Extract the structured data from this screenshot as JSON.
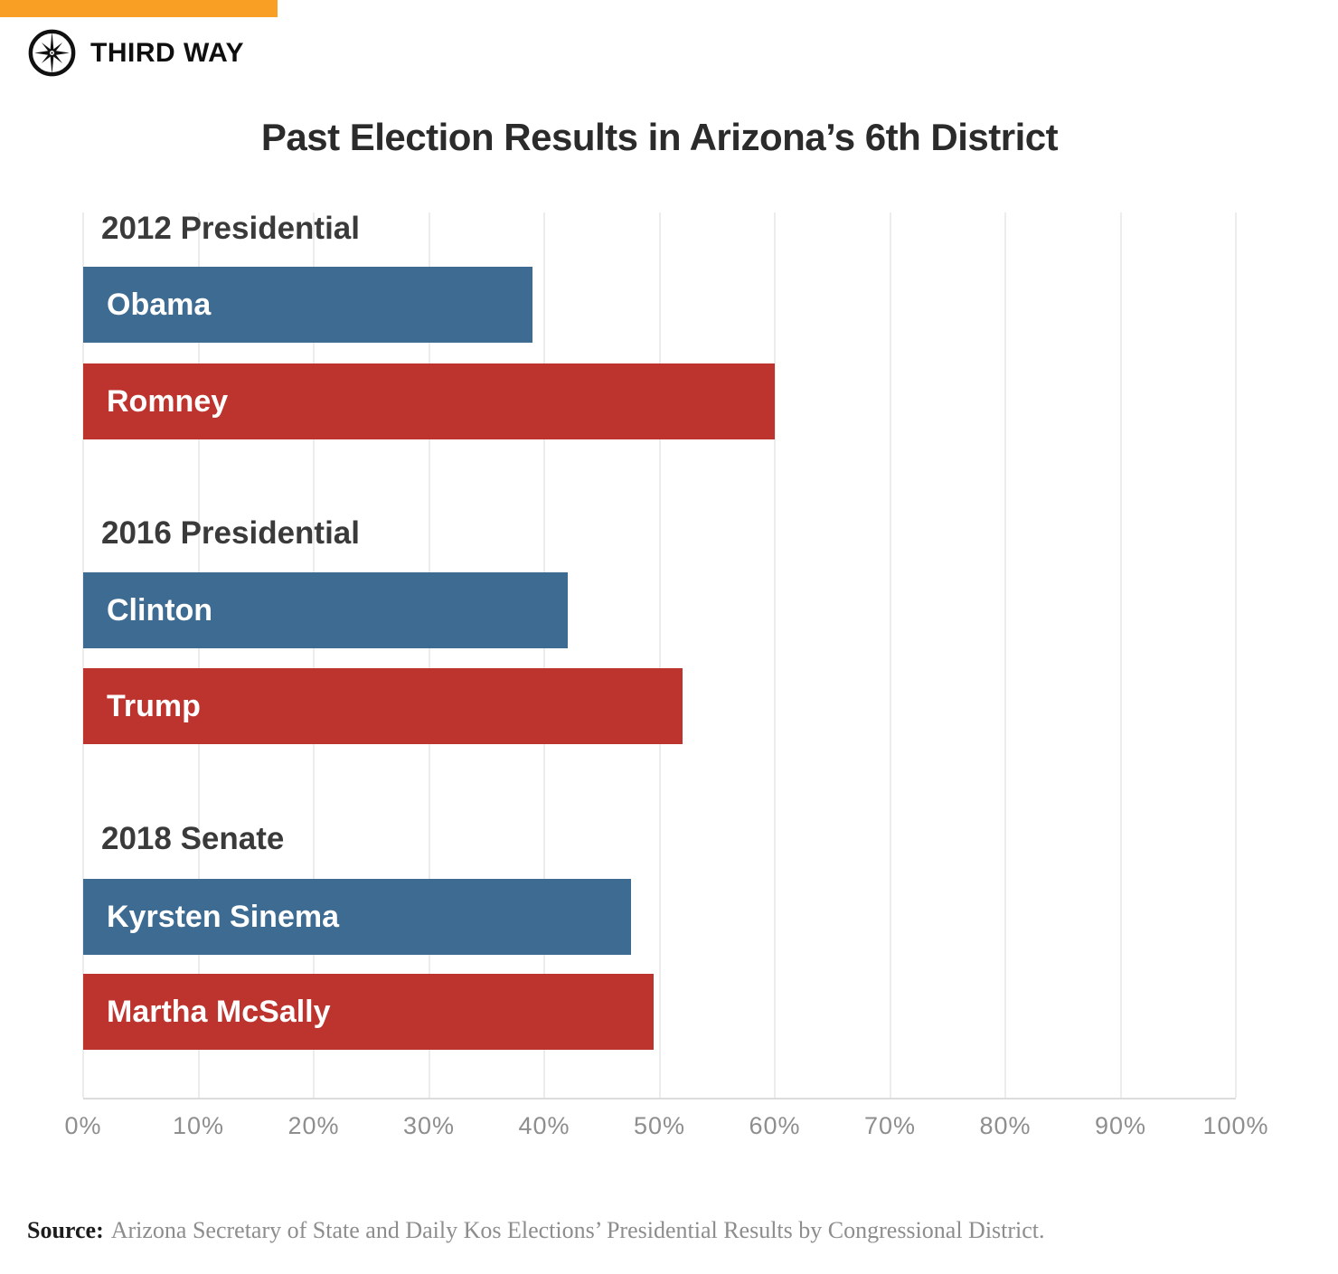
{
  "brand": {
    "name": "THIRD WAY",
    "icon": "compass-star-icon",
    "accent_color": "#F9A024"
  },
  "chart_data": {
    "type": "bar",
    "orientation": "horizontal",
    "title": "Past Election Results in Arizona’s 6th District",
    "xlim": [
      0,
      100
    ],
    "x_ticks": [
      "0%",
      "10%",
      "20%",
      "30%",
      "40%",
      "50%",
      "60%",
      "70%",
      "80%",
      "90%",
      "100%"
    ],
    "grid": true,
    "legend": "none",
    "colors": {
      "democrat": "#3E6B92",
      "republican": "#BD332E"
    },
    "groups": [
      {
        "label": "2012 Presidential",
        "bars": [
          {
            "name": "Obama",
            "party": "democrat",
            "value": 39
          },
          {
            "name": "Romney",
            "party": "republican",
            "value": 60
          }
        ]
      },
      {
        "label": "2016 Presidential",
        "bars": [
          {
            "name": "Clinton",
            "party": "democrat",
            "value": 42
          },
          {
            "name": "Trump",
            "party": "republican",
            "value": 52
          }
        ]
      },
      {
        "label": "2018 Senate",
        "bars": [
          {
            "name": "Kyrsten Sinema",
            "party": "democrat",
            "value": 47.5
          },
          {
            "name": "Martha McSally",
            "party": "republican",
            "value": 49.5
          }
        ]
      }
    ]
  },
  "source": {
    "label": "Source:",
    "text": "Arizona Secretary of State and Daily Kos Elections’ Presidential Results by Congressional District."
  }
}
